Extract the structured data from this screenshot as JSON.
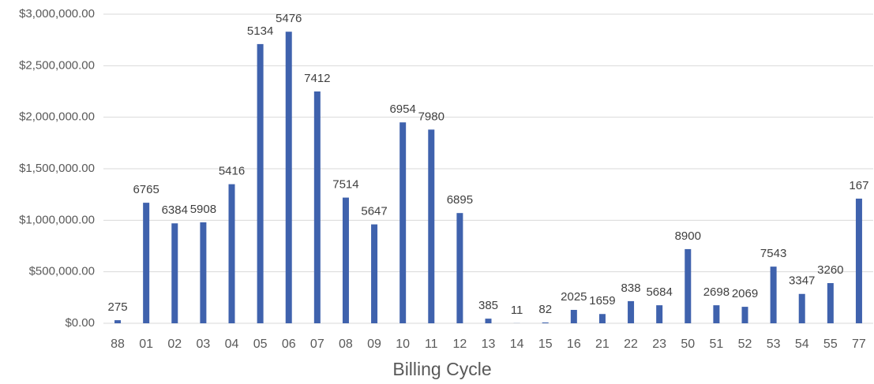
{
  "chart_data": {
    "type": "bar",
    "x_label": "Billing Cycle",
    "categories": [
      "88",
      "01",
      "02",
      "03",
      "04",
      "05",
      "06",
      "07",
      "08",
      "09",
      "10",
      "11",
      "12",
      "13",
      "14",
      "15",
      "16",
      "21",
      "22",
      "23",
      "50",
      "51",
      "52",
      "53",
      "54",
      "55",
      "77"
    ],
    "values": [
      30000,
      1170000,
      970000,
      980000,
      1350000,
      2710000,
      2830000,
      2250000,
      1220000,
      960000,
      1950000,
      1880000,
      1070000,
      45000,
      1000,
      8000,
      130000,
      90000,
      215000,
      175000,
      720000,
      175000,
      160000,
      550000,
      285000,
      390000,
      1210000
    ],
    "data_labels": [
      275,
      6765,
      6384,
      5908,
      5416,
      5134,
      5476,
      7412,
      7514,
      5647,
      6954,
      7980,
      6895,
      385,
      11,
      82,
      2025,
      1659,
      838,
      5684,
      8900,
      2698,
      2069,
      7543,
      3347,
      3260,
      167
    ],
    "color": "#3f62ad",
    "ylim": [
      0,
      3000000
    ],
    "yticks": [
      {
        "value": 0,
        "label": "$0.00"
      },
      {
        "value": 500000,
        "label": "$500,000.00"
      },
      {
        "value": 1000000,
        "label": "$1,000,000.00"
      },
      {
        "value": 1500000,
        "label": "$1,500,000.00"
      },
      {
        "value": 2000000,
        "label": "$2,000,000.00"
      },
      {
        "value": 2500000,
        "label": "$2,500,000.00"
      },
      {
        "value": 3000000,
        "label": "$3,000,000.00"
      }
    ],
    "grid": true
  }
}
